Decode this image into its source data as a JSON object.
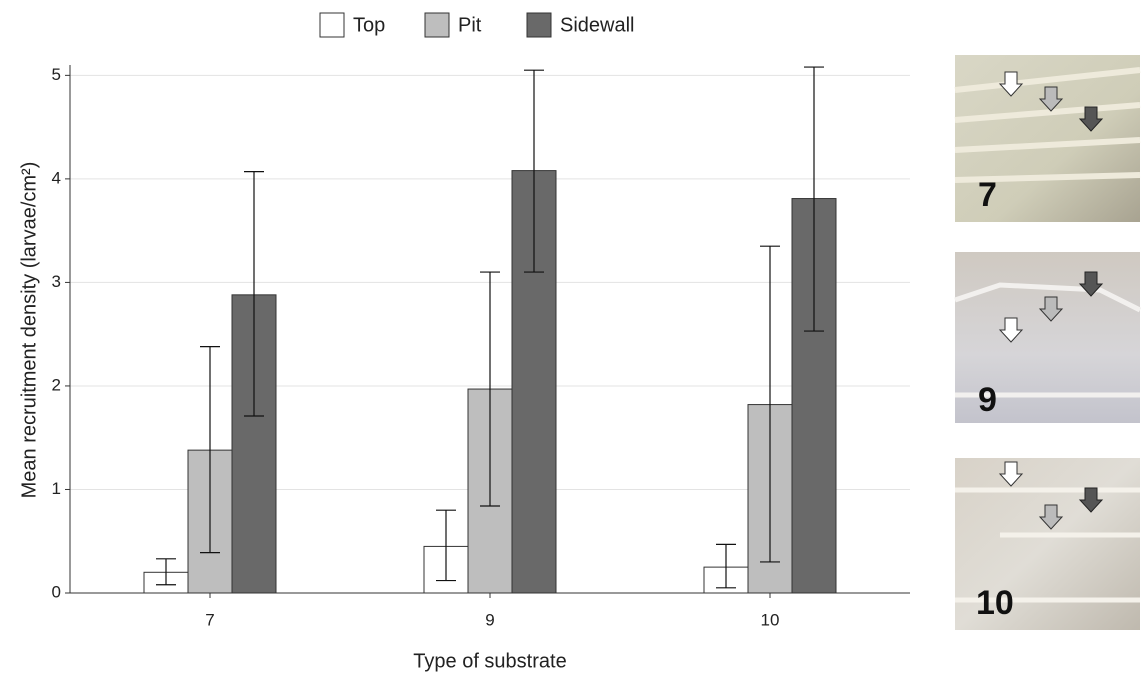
{
  "chart_data": {
    "type": "bar",
    "x_label": "Type of substrate",
    "y_label": "Mean recruitment density (larvae/cm²)",
    "categories": [
      "7",
      "9",
      "10"
    ],
    "series": [
      {
        "name": "Top",
        "color": "#ffffff",
        "values": [
          0.2,
          0.45,
          0.25
        ],
        "error_low": [
          0.08,
          0.12,
          0.05
        ],
        "error_high": [
          0.33,
          0.8,
          0.47
        ]
      },
      {
        "name": "Pit",
        "color": "#bebebe",
        "values": [
          1.38,
          1.97,
          1.82
        ],
        "error_low": [
          0.39,
          0.84,
          0.3
        ],
        "error_high": [
          2.38,
          3.1,
          3.35
        ]
      },
      {
        "name": "Sidewall",
        "color": "#696969",
        "values": [
          2.88,
          4.08,
          3.81
        ],
        "error_low": [
          1.71,
          3.1,
          2.53
        ],
        "error_high": [
          4.07,
          5.05,
          5.08
        ]
      }
    ],
    "ylim": [
      0,
      5.1
    ],
    "yticks": [
      0,
      1,
      2,
      3,
      4,
      5
    ],
    "grid": true,
    "legend": "top"
  },
  "images": {
    "labels": [
      "7",
      "9",
      "10"
    ]
  }
}
